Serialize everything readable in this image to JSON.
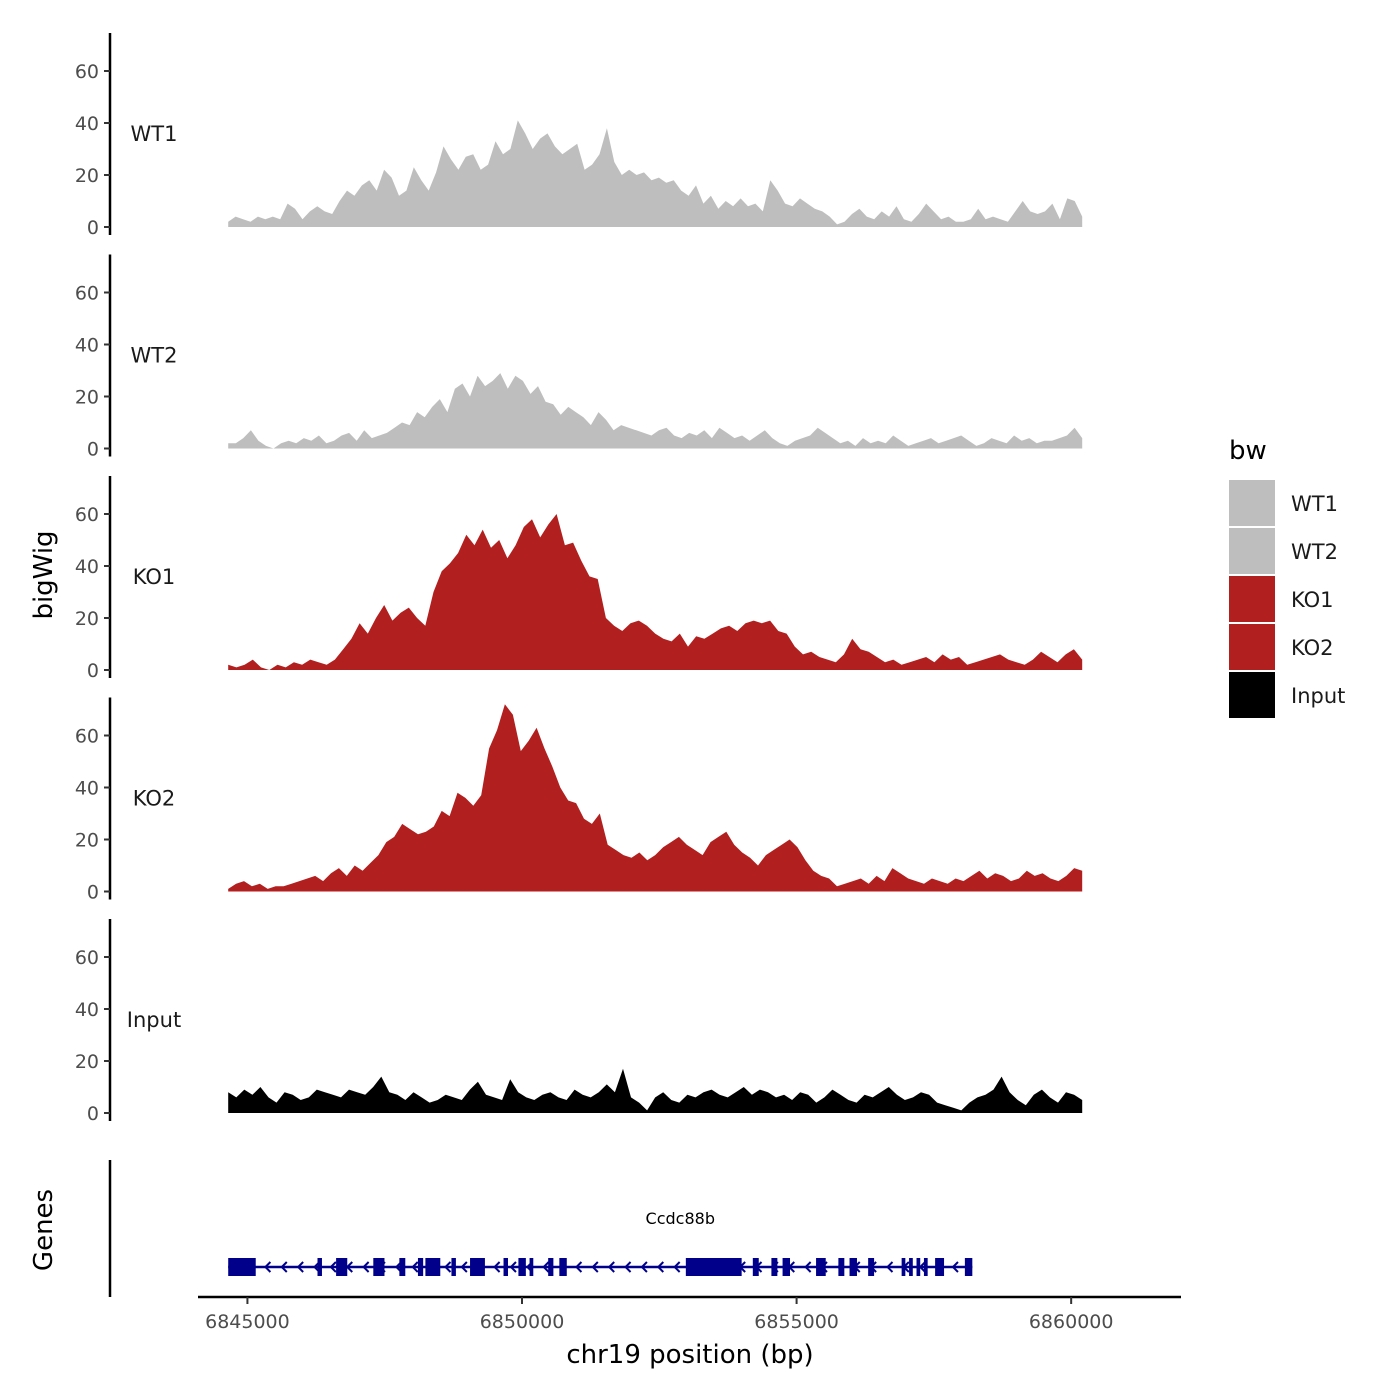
{
  "chart_data": {
    "type": "area",
    "ylabel": "bigWig",
    "xlabel": "chr19 position (bp)",
    "genes_label": "Genes",
    "ylim": [
      0,
      75
    ],
    "y_ticks": [
      0,
      20,
      40,
      60
    ],
    "xlim": [
      6844100,
      6862000
    ],
    "x_ticks": [
      6845000,
      6850000,
      6855000,
      6860000
    ],
    "x_tick_labels": [
      "6845000",
      "6850000",
      "6855000",
      "6860000"
    ],
    "region": [
      6844650,
      6860200
    ],
    "tracks": [
      {
        "name": "WT1",
        "color": "#BEBEBE",
        "values": [
          2,
          4,
          3,
          2,
          4,
          3,
          4,
          3,
          9,
          7,
          3,
          6,
          8,
          6,
          5,
          10,
          14,
          12,
          16,
          18,
          14,
          22,
          19,
          12,
          14,
          23,
          18,
          14,
          21,
          31,
          26,
          22,
          27,
          28,
          22,
          24,
          33,
          28,
          30,
          41,
          36,
          30,
          34,
          36,
          31,
          28,
          30,
          32,
          22,
          24,
          28,
          38,
          25,
          20,
          22,
          20,
          21,
          18,
          19,
          17,
          18,
          14,
          12,
          16,
          9,
          12,
          7,
          10,
          8,
          11,
          8,
          9,
          6,
          18,
          14,
          9,
          8,
          11,
          9,
          7,
          6,
          4,
          1,
          2,
          5,
          7,
          4,
          3,
          6,
          4,
          8,
          3,
          2,
          5,
          9,
          6,
          3,
          4,
          2,
          2,
          3,
          7,
          3,
          4,
          3,
          2,
          6,
          10,
          6,
          5,
          6,
          9,
          3,
          11,
          10,
          4
        ]
      },
      {
        "name": "WT2",
        "color": "#BEBEBE",
        "values": [
          2,
          2,
          4,
          7,
          3,
          1,
          0,
          2,
          3,
          2,
          4,
          3,
          5,
          2,
          3,
          5,
          6,
          3,
          7,
          4,
          5,
          6,
          8,
          10,
          9,
          14,
          12,
          16,
          19,
          14,
          23,
          25,
          20,
          28,
          24,
          26,
          29,
          23,
          28,
          26,
          21,
          24,
          18,
          17,
          13,
          16,
          14,
          12,
          9,
          14,
          11,
          7,
          9,
          8,
          7,
          6,
          5,
          7,
          8,
          5,
          4,
          6,
          5,
          7,
          4,
          8,
          6,
          4,
          5,
          3,
          5,
          7,
          4,
          2,
          1,
          3,
          4,
          5,
          8,
          6,
          4,
          2,
          3,
          1,
          4,
          2,
          3,
          2,
          5,
          3,
          1,
          2,
          3,
          4,
          2,
          3,
          4,
          5,
          3,
          1,
          2,
          4,
          3,
          2,
          5,
          3,
          4,
          2,
          3,
          3,
          4,
          5,
          8,
          4
        ]
      },
      {
        "name": "KO1",
        "color": "#B21F1F",
        "values": [
          2,
          1,
          2,
          4,
          1,
          0,
          2,
          1,
          3,
          2,
          4,
          3,
          2,
          4,
          8,
          12,
          18,
          14,
          20,
          25,
          19,
          22,
          24,
          20,
          17,
          30,
          38,
          41,
          45,
          52,
          48,
          54,
          47,
          50,
          43,
          48,
          55,
          58,
          51,
          56,
          60,
          48,
          49,
          42,
          36,
          35,
          20,
          17,
          15,
          18,
          19,
          17,
          14,
          12,
          11,
          14,
          9,
          13,
          12,
          14,
          16,
          17,
          15,
          18,
          19,
          18,
          19,
          15,
          14,
          9,
          6,
          7,
          5,
          4,
          3,
          6,
          12,
          8,
          7,
          5,
          3,
          4,
          2,
          3,
          4,
          5,
          3,
          6,
          4,
          5,
          2,
          3,
          4,
          5,
          6,
          4,
          3,
          2,
          4,
          7,
          5,
          3,
          6,
          8,
          4
        ]
      },
      {
        "name": "KO2",
        "color": "#B21F1F",
        "values": [
          1,
          3,
          4,
          2,
          3,
          1,
          2,
          2,
          3,
          4,
          5,
          6,
          4,
          7,
          9,
          6,
          10,
          8,
          11,
          14,
          19,
          21,
          26,
          24,
          22,
          23,
          25,
          31,
          29,
          38,
          36,
          33,
          37,
          55,
          62,
          72,
          68,
          54,
          58,
          63,
          55,
          48,
          40,
          35,
          34,
          28,
          26,
          30,
          18,
          16,
          14,
          13,
          15,
          12,
          14,
          17,
          19,
          21,
          18,
          16,
          14,
          19,
          21,
          23,
          18,
          15,
          13,
          10,
          14,
          16,
          18,
          20,
          17,
          12,
          8,
          6,
          5,
          2,
          3,
          4,
          5,
          3,
          6,
          4,
          9,
          7,
          5,
          4,
          3,
          5,
          4,
          3,
          5,
          4,
          6,
          8,
          5,
          7,
          6,
          4,
          5,
          8,
          6,
          7,
          5,
          4,
          6,
          9,
          8
        ]
      },
      {
        "name": "Input",
        "color": "#000000",
        "values": [
          8,
          6,
          9,
          7,
          10,
          6,
          4,
          8,
          7,
          5,
          6,
          9,
          8,
          7,
          6,
          9,
          8,
          7,
          10,
          14,
          8,
          7,
          5,
          8,
          6,
          4,
          5,
          7,
          6,
          5,
          9,
          12,
          7,
          6,
          5,
          13,
          8,
          6,
          5,
          7,
          8,
          6,
          5,
          9,
          7,
          6,
          8,
          11,
          8,
          17,
          6,
          4,
          1,
          6,
          8,
          5,
          4,
          7,
          6,
          8,
          9,
          7,
          6,
          8,
          10,
          7,
          9,
          8,
          6,
          7,
          5,
          8,
          7,
          4,
          6,
          9,
          7,
          5,
          4,
          7,
          6,
          8,
          10,
          7,
          5,
          6,
          8,
          7,
          4,
          3,
          2,
          1,
          4,
          6,
          7,
          9,
          14,
          8,
          5,
          3,
          7,
          9,
          6,
          4,
          8,
          7,
          5
        ]
      }
    ],
    "gene": {
      "name": "Ccdc88b",
      "start": 6844650,
      "end": 6858200,
      "strand": "-",
      "color": "#00008B"
    },
    "legend": {
      "title": "bw",
      "position": "right",
      "entries": [
        {
          "label": "WT1",
          "color": "#BEBEBE"
        },
        {
          "label": "WT2",
          "color": "#BEBEBE"
        },
        {
          "label": "KO1",
          "color": "#B21F1F"
        },
        {
          "label": "KO2",
          "color": "#B21F1F"
        },
        {
          "label": "Input",
          "color": "#000000"
        }
      ]
    }
  }
}
